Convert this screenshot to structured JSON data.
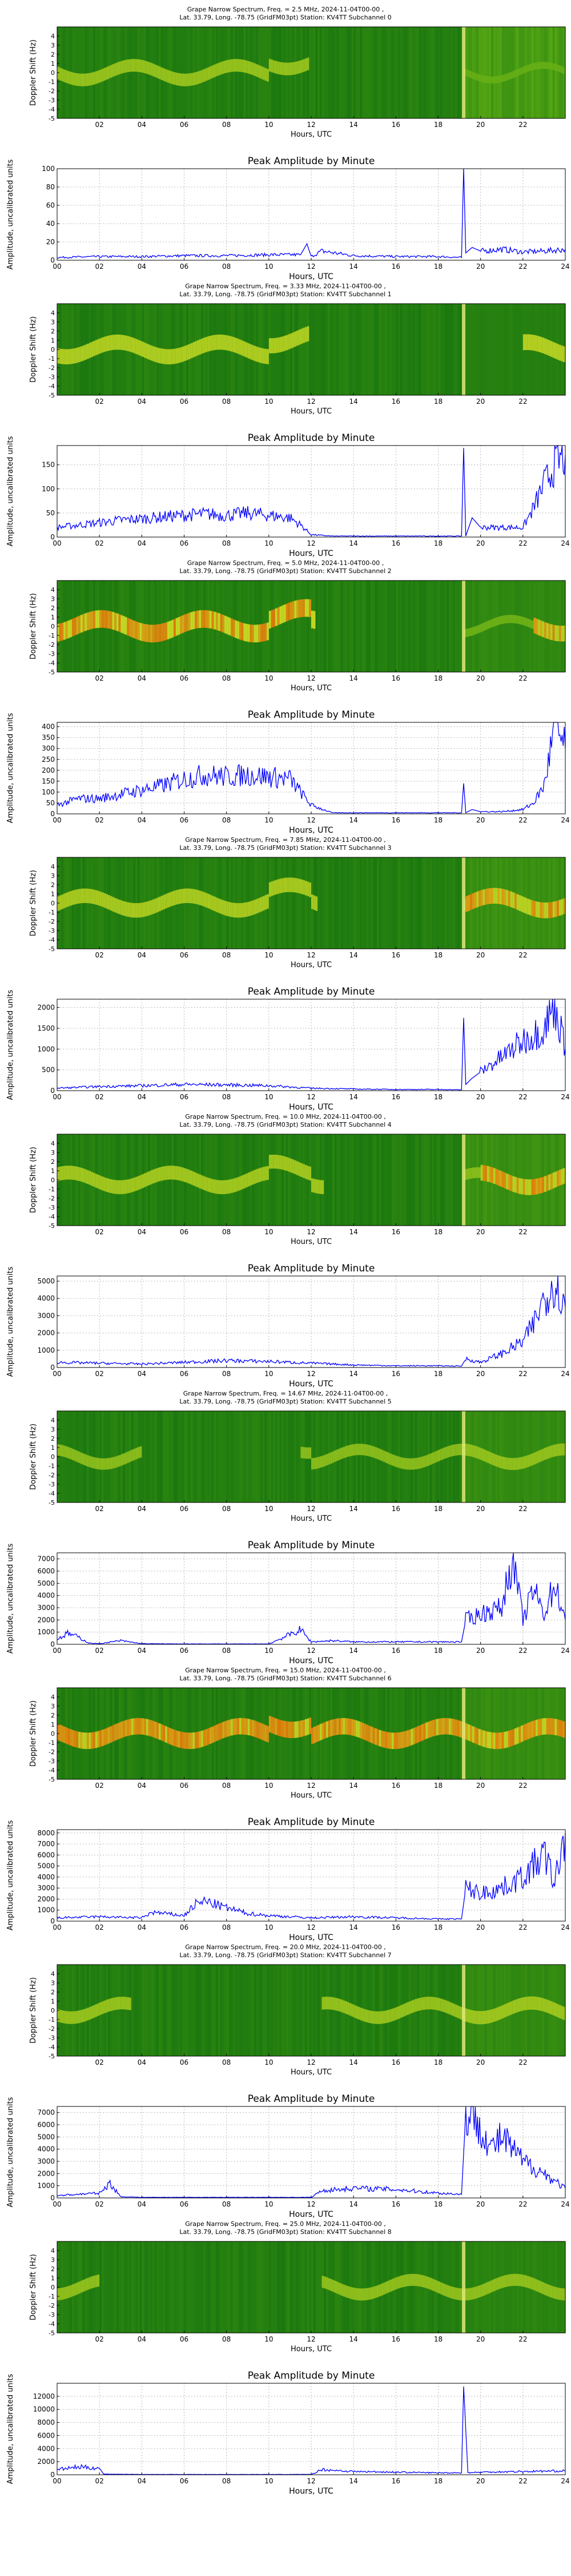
{
  "shared": {
    "xlabel": "Hours, UTC",
    "spectrogram_ylabel": "Doppler Shift (Hz)",
    "amplitude_title": "Peak Amplitude by Minute",
    "amplitude_ylabel": "Amplitude, uncalibrated units",
    "spectrogram_xticks": [
      "02",
      "04",
      "06",
      "08",
      "10",
      "12",
      "14",
      "16",
      "18",
      "20",
      "22"
    ],
    "amplitude_xticks": [
      "00",
      "02",
      "04",
      "06",
      "08",
      "10",
      "12",
      "14",
      "16",
      "18",
      "20",
      "22",
      "24"
    ],
    "spectrogram_yticks": [
      "-5",
      "-4",
      "-3",
      "-2",
      "-1",
      "0",
      "1",
      "2",
      "3",
      "4"
    ],
    "colors": {
      "line": "#0000ff",
      "spec_bg": "#1f8a14",
      "spec_mid": "#d7e51a",
      "spec_hot": "#ff6a00"
    }
  },
  "chart_data": [
    {
      "type": "heatmap",
      "title": "Grape Narrow Spectrum, Freq. = 2.5 MHz, 2024-11-04T00-00 ,",
      "subtitle": "Lat.  33.79, Long. -78.75 (GridFM03pt) Station: KV4TT Subchannel 0",
      "xlabel": "Hours, UTC",
      "ylabel": "Doppler Shift (Hz)",
      "xlim": [
        0,
        24
      ],
      "ylim": [
        -5,
        5
      ]
    },
    {
      "type": "line",
      "title": "Peak Amplitude by Minute",
      "xlabel": "Hours, UTC",
      "ylabel": "Amplitude, uncalibrated units",
      "xlim": [
        0,
        24
      ],
      "ylim": [
        0,
        100
      ],
      "yticks": [
        "0",
        "20",
        "40",
        "60",
        "80",
        "100"
      ],
      "series": [
        {
          "x": [
            0,
            2,
            4,
            6,
            8,
            10,
            11.5,
            11.8,
            12,
            12.5,
            14,
            16,
            18,
            19.1,
            19.2,
            19.3,
            19.6,
            20,
            21,
            22,
            23,
            24
          ],
          "y": [
            3,
            4,
            4,
            5,
            5,
            6,
            6,
            18,
            4,
            10,
            5,
            4,
            4,
            3,
            100,
            8,
            14,
            10,
            12,
            9,
            10,
            12
          ]
        }
      ]
    },
    {
      "type": "heatmap",
      "title": "Grape Narrow Spectrum, Freq. = 3.33 MHz, 2024-11-04T00-00 ,",
      "subtitle": "Lat.  33.79, Long. -78.75 (GridFM03pt) Station: KV4TT Subchannel 1",
      "xlabel": "Hours, UTC",
      "ylabel": "Doppler Shift (Hz)",
      "xlim": [
        0,
        24
      ],
      "ylim": [
        -5,
        5
      ]
    },
    {
      "type": "line",
      "title": "Peak Amplitude by Minute",
      "xlabel": "Hours, UTC",
      "ylabel": "Amplitude, uncalibrated units",
      "xlim": [
        0,
        24
      ],
      "ylim": [
        0,
        190
      ],
      "yticks": [
        "0",
        "50",
        "100",
        "150"
      ],
      "series": [
        {
          "x": [
            0,
            1,
            2,
            3,
            4,
            5,
            6,
            7,
            8,
            9,
            10,
            11,
            11.5,
            12,
            13,
            14,
            16,
            18,
            19.1,
            19.2,
            19.3,
            19.6,
            20,
            21,
            22,
            22.5,
            23,
            23.5,
            24
          ],
          "y": [
            20,
            25,
            30,
            35,
            38,
            42,
            45,
            48,
            45,
            50,
            45,
            40,
            25,
            5,
            2,
            2,
            2,
            2,
            2,
            185,
            2,
            40,
            20,
            20,
            20,
            60,
            110,
            150,
            170
          ]
        }
      ]
    },
    {
      "type": "heatmap",
      "title": "Grape Narrow Spectrum, Freq. = 5.0 MHz, 2024-11-04T00-00 ,",
      "subtitle": "Lat.  33.79, Long. -78.75 (GridFM03pt) Station: KV4TT Subchannel 2",
      "xlabel": "Hours, UTC",
      "ylabel": "Doppler Shift (Hz)",
      "xlim": [
        0,
        24
      ],
      "ylim": [
        -5,
        5
      ]
    },
    {
      "type": "line",
      "title": "Peak Amplitude by Minute",
      "xlabel": "Hours, UTC",
      "ylabel": "Amplitude, uncalibrated units",
      "xlim": [
        0,
        24
      ],
      "ylim": [
        0,
        420
      ],
      "yticks": [
        "0",
        "50",
        "100",
        "150",
        "200",
        "250",
        "300",
        "350",
        "400"
      ],
      "series": [
        {
          "x": [
            0,
            1,
            2,
            3,
            4,
            5,
            6,
            7,
            8,
            9,
            10,
            11,
            11.5,
            12,
            13,
            14,
            16,
            18,
            19.1,
            19.2,
            19.3,
            19.6,
            20,
            21,
            22,
            22.5,
            23,
            23.5,
            24
          ],
          "y": [
            40,
            70,
            70,
            90,
            110,
            130,
            160,
            180,
            170,
            180,
            170,
            160,
            100,
            40,
            5,
            5,
            5,
            5,
            5,
            140,
            5,
            20,
            10,
            10,
            20,
            50,
            130,
            400,
            300
          ]
        }
      ]
    },
    {
      "type": "heatmap",
      "title": "Grape Narrow Spectrum, Freq. = 7.85 MHz, 2024-11-04T00-00 ,",
      "subtitle": "Lat.  33.79, Long. -78.75 (GridFM03pt) Station: KV4TT Subchannel 3",
      "xlabel": "Hours, UTC",
      "ylabel": "Doppler Shift (Hz)",
      "xlim": [
        0,
        24
      ],
      "ylim": [
        -5,
        5
      ]
    },
    {
      "type": "line",
      "title": "Peak Amplitude by Minute",
      "xlabel": "Hours, UTC",
      "ylabel": "Amplitude, uncalibrated units",
      "xlim": [
        0,
        24
      ],
      "ylim": [
        0,
        2200
      ],
      "yticks": [
        "0",
        "500",
        "1000",
        "1500",
        "2000"
      ],
      "series": [
        {
          "x": [
            0,
            2,
            4,
            6,
            8,
            10,
            12,
            14,
            16,
            18,
            19.1,
            19.2,
            19.3,
            19.6,
            20,
            21,
            22,
            23,
            23.5,
            24
          ],
          "y": [
            60,
            100,
            120,
            150,
            140,
            120,
            60,
            40,
            30,
            30,
            20,
            1750,
            150,
            300,
            450,
            800,
            1200,
            1500,
            2100,
            1000
          ]
        }
      ]
    },
    {
      "type": "heatmap",
      "title": "Grape Narrow Spectrum, Freq. = 10.0 MHz, 2024-11-04T00-00 ,",
      "subtitle": "Lat.  33.79, Long. -78.75 (GridFM03pt) Station: KV4TT Subchannel 4",
      "xlabel": "Hours, UTC",
      "ylabel": "Doppler Shift (Hz)",
      "xlim": [
        0,
        24
      ],
      "ylim": [
        -5,
        5
      ]
    },
    {
      "type": "line",
      "title": "Peak Amplitude by Minute",
      "xlabel": "Hours, UTC",
      "ylabel": "Amplitude, uncalibrated units",
      "xlim": [
        0,
        24
      ],
      "ylim": [
        0,
        5300
      ],
      "yticks": [
        "0",
        "1000",
        "2000",
        "3000",
        "4000",
        "5000"
      ],
      "series": [
        {
          "x": [
            0,
            2,
            4,
            6,
            8,
            10,
            12,
            14,
            16,
            18,
            19.1,
            19.3,
            20,
            21,
            22,
            22.5,
            23,
            23.5,
            24
          ],
          "y": [
            300,
            250,
            200,
            300,
            400,
            350,
            250,
            150,
            100,
            100,
            80,
            500,
            300,
            800,
            1500,
            2500,
            4000,
            5000,
            3500
          ]
        }
      ]
    },
    {
      "type": "heatmap",
      "title": "Grape Narrow Spectrum, Freq. = 14.67 MHz, 2024-11-04T00-00 ,",
      "subtitle": "Lat.  33.79, Long. -78.75 (GridFM03pt) Station: KV4TT Subchannel 5",
      "xlabel": "Hours, UTC",
      "ylabel": "Doppler Shift (Hz)",
      "xlim": [
        0,
        24
      ],
      "ylim": [
        -5,
        5
      ]
    },
    {
      "type": "line",
      "title": "Peak Amplitude by Minute",
      "xlabel": "Hours, UTC",
      "ylabel": "Amplitude, uncalibrated units",
      "xlim": [
        0,
        24
      ],
      "ylim": [
        0,
        7500
      ],
      "yticks": [
        "0",
        "1000",
        "2000",
        "3000",
        "4000",
        "5000",
        "6000",
        "7000"
      ],
      "series": [
        {
          "x": [
            0,
            0.5,
            1,
            1.5,
            2,
            3,
            4,
            6,
            8,
            10,
            11.5,
            12,
            13,
            14,
            16,
            18,
            19.1,
            19.3,
            20,
            21,
            21.5,
            22,
            22.5,
            23,
            23.5,
            24
          ],
          "y": [
            400,
            900,
            600,
            100,
            50,
            300,
            50,
            30,
            30,
            30,
            1200,
            200,
            300,
            200,
            200,
            200,
            200,
            2000,
            2500,
            3000,
            7300,
            2000,
            4500,
            2500,
            5000,
            2000
          ]
        }
      ]
    },
    {
      "type": "heatmap",
      "title": "Grape Narrow Spectrum, Freq. = 15.0 MHz, 2024-11-04T00-00 ,",
      "subtitle": "Lat.  33.79, Long. -78.75 (GridFM03pt) Station: KV4TT Subchannel 6",
      "xlabel": "Hours, UTC",
      "ylabel": "Doppler Shift (Hz)",
      "xlim": [
        0,
        24
      ],
      "ylim": [
        -5,
        5
      ]
    },
    {
      "type": "line",
      "title": "Peak Amplitude by Minute",
      "xlabel": "Hours, UTC",
      "ylabel": "Amplitude, uncalibrated units",
      "xlim": [
        0,
        24
      ],
      "ylim": [
        0,
        8300
      ],
      "yticks": [
        "0",
        "1000",
        "2000",
        "3000",
        "4000",
        "5000",
        "6000",
        "7000",
        "8000"
      ],
      "series": [
        {
          "x": [
            0,
            2,
            4,
            4.5,
            6,
            6.5,
            7,
            8,
            9,
            10,
            12,
            14,
            16,
            18,
            19.1,
            19.3,
            20,
            21,
            22,
            23,
            23.5,
            24
          ],
          "y": [
            300,
            400,
            300,
            800,
            500,
            1500,
            1800,
            1200,
            700,
            500,
            300,
            400,
            300,
            200,
            200,
            3000,
            2500,
            3000,
            4000,
            6000,
            3500,
            8000
          ]
        }
      ]
    },
    {
      "type": "heatmap",
      "title": "Grape Narrow Spectrum, Freq. = 20.0 MHz, 2024-11-04T00-00 ,",
      "subtitle": "Lat.  33.79, Long. -78.75 (GridFM03pt) Station: KV4TT Subchannel 7",
      "xlabel": "Hours, UTC",
      "ylabel": "Doppler Shift (Hz)",
      "xlim": [
        0,
        24
      ],
      "ylim": [
        -5,
        5
      ]
    },
    {
      "type": "line",
      "title": "Peak Amplitude by Minute",
      "xlabel": "Hours, UTC",
      "ylabel": "Amplitude, uncalibrated units",
      "xlim": [
        0,
        24
      ],
      "ylim": [
        0,
        7500
      ],
      "yticks": [
        "0",
        "1000",
        "2000",
        "3000",
        "4000",
        "5000",
        "6000",
        "7000"
      ],
      "series": [
        {
          "x": [
            0,
            1,
            2,
            2.5,
            3,
            4,
            8,
            12,
            12.5,
            14,
            16,
            18,
            19.1,
            19.3,
            20,
            20.5,
            21,
            22,
            23,
            24
          ],
          "y": [
            200,
            300,
            400,
            1200,
            100,
            50,
            50,
            50,
            600,
            800,
            700,
            400,
            300,
            7000,
            6000,
            4000,
            5000,
            3000,
            2000,
            800
          ]
        }
      ]
    },
    {
      "type": "heatmap",
      "title": "Grape Narrow Spectrum, Freq. = 25.0 MHz, 2024-11-04T00-00 ,",
      "subtitle": "Lat.  33.79, Long. -78.75 (GridFM03pt) Station: KV4TT Subchannel 8",
      "xlabel": "Hours, UTC",
      "ylabel": "Doppler Shift (Hz)",
      "xlim": [
        0,
        24
      ],
      "ylim": [
        -5,
        5
      ]
    },
    {
      "type": "line",
      "title": "Peak Amplitude by Minute",
      "xlabel": "Hours, UTC",
      "ylabel": "Amplitude, uncalibrated units",
      "xlim": [
        0,
        24
      ],
      "ylim": [
        0,
        14000
      ],
      "yticks": [
        "0",
        "2000",
        "4000",
        "6000",
        "8000",
        "10000",
        "12000"
      ],
      "series": [
        {
          "x": [
            0,
            1,
            2,
            2.2,
            4,
            8,
            12,
            12.5,
            14,
            16,
            18,
            19.1,
            19.2,
            19.4,
            20,
            22,
            24
          ],
          "y": [
            800,
            1200,
            1000,
            100,
            50,
            50,
            50,
            800,
            500,
            400,
            300,
            300,
            13500,
            300,
            400,
            500,
            600
          ]
        }
      ]
    }
  ]
}
